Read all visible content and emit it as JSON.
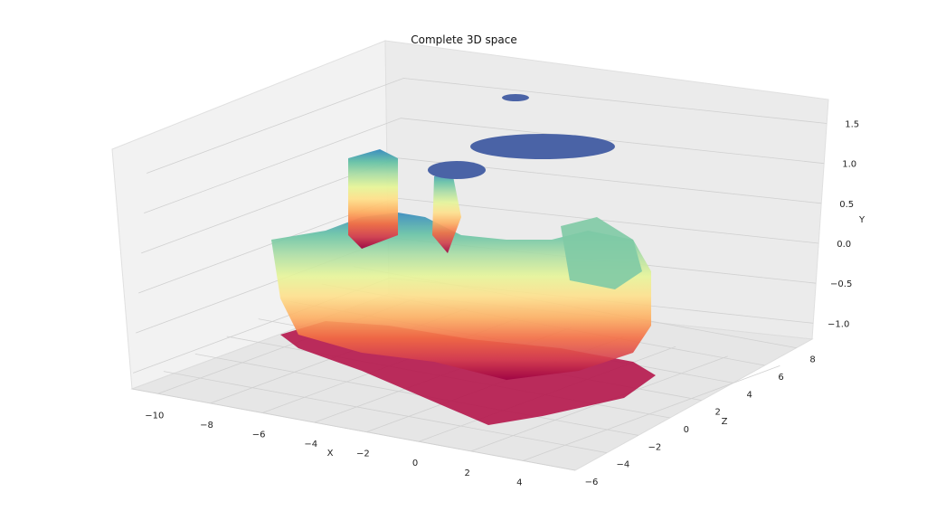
{
  "chart_data": {
    "type": "surface",
    "title": "Complete 3D space",
    "xlabel": "X",
    "ylabel": "Y",
    "zlabel": "Z",
    "xlim": [
      -11,
      6
    ],
    "zlim": [
      -6,
      9
    ],
    "ylim": [
      -1.2,
      1.8
    ],
    "x_ticks": [
      "−10",
      "−8",
      "−6",
      "−4",
      "−2",
      "0",
      "2",
      "4"
    ],
    "z_ticks": [
      "−6",
      "−4",
      "−2",
      "0",
      "2",
      "4",
      "6",
      "8"
    ],
    "y_ticks": [
      "−1.0",
      "−0.5",
      "0.0",
      "0.5",
      "1.0",
      "1.5"
    ],
    "x_tick_values": [
      -10,
      -8,
      -6,
      -4,
      -2,
      0,
      2,
      4
    ],
    "z_tick_values": [
      -6,
      -4,
      -2,
      0,
      2,
      4,
      6,
      8
    ],
    "y_tick_values": [
      -1.0,
      -0.5,
      0.0,
      0.5,
      1.0,
      1.5
    ],
    "colormap": "Spectral",
    "grid": true,
    "pane_color": "#f2f2f2",
    "grid_color": "#d0d0d0"
  }
}
